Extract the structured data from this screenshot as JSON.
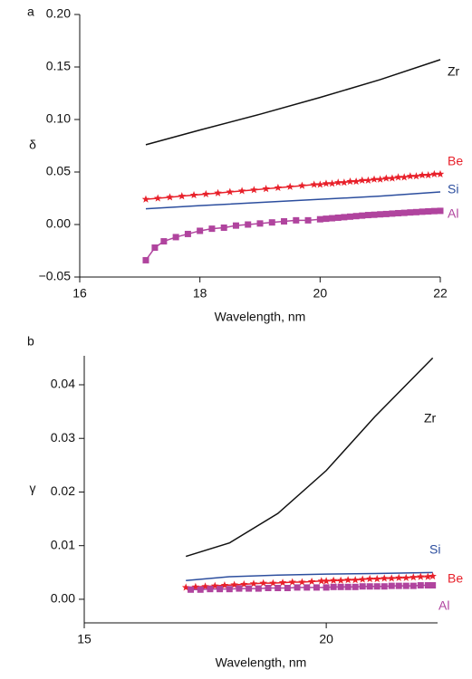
{
  "chart_data": [
    {
      "type": "line",
      "panel": "a",
      "ylabel": "δ",
      "xlabel": "Wavelength, nm",
      "xlim": [
        16,
        22
      ],
      "xticks": [
        16,
        18,
        20,
        22
      ],
      "ylim": [
        -0.05,
        0.2
      ],
      "yticks": [
        {
          "value": -0.05,
          "label": "−0.05"
        },
        {
          "value": 0,
          "label": "0.00"
        },
        {
          "value": 0.05,
          "label": "0.05"
        },
        {
          "value": 0.1,
          "label": "0.10"
        },
        {
          "value": 0.15,
          "label": "0.15"
        },
        {
          "value": 0.2,
          "label": "0.20"
        }
      ],
      "series": [
        {
          "name": "Zr",
          "color": "#111111",
          "marker": null,
          "x": [
            17.1,
            18,
            19,
            20,
            21,
            22
          ],
          "values": [
            0.076,
            0.09,
            0.105,
            0.121,
            0.138,
            0.157
          ]
        },
        {
          "name": "Be",
          "color": "#e8202a",
          "marker": "star",
          "x": [
            17.1,
            17.3,
            17.5,
            17.7,
            17.9,
            18.1,
            18.3,
            18.5,
            18.7,
            18.9,
            19.1,
            19.3,
            19.5,
            19.7,
            19.9,
            20,
            20.1,
            20.2,
            20.3,
            20.4,
            20.5,
            20.6,
            20.7,
            20.8,
            20.9,
            21,
            21.1,
            21.2,
            21.3,
            21.4,
            21.5,
            21.6,
            21.7,
            21.8,
            21.9,
            22
          ],
          "values": [
            0.024,
            0.025,
            0.026,
            0.027,
            0.028,
            0.029,
            0.03,
            0.031,
            0.032,
            0.033,
            0.034,
            0.035,
            0.036,
            0.037,
            0.038,
            0.038,
            0.039,
            0.039,
            0.04,
            0.04,
            0.041,
            0.041,
            0.042,
            0.042,
            0.043,
            0.043,
            0.044,
            0.044,
            0.045,
            0.045,
            0.046,
            0.046,
            0.047,
            0.047,
            0.048,
            0.048
          ]
        },
        {
          "name": "Si",
          "color": "#2c4e9e",
          "marker": null,
          "x": [
            17.1,
            18,
            19,
            20,
            21,
            22
          ],
          "values": [
            0.015,
            0.018,
            0.021,
            0.024,
            0.027,
            0.031
          ]
        },
        {
          "name": "Al",
          "color": "#b0449e",
          "marker": "square",
          "x": [
            17.1,
            17.25,
            17.4,
            17.6,
            17.8,
            18,
            18.2,
            18.4,
            18.6,
            18.8,
            19,
            19.2,
            19.4,
            19.6,
            19.8,
            20,
            20.1,
            20.2,
            20.3,
            20.4,
            20.5,
            20.6,
            20.7,
            20.8,
            20.9,
            21,
            21.1,
            21.2,
            21.3,
            21.4,
            21.5,
            21.6,
            21.7,
            21.8,
            21.9,
            22
          ],
          "values": [
            -0.034,
            -0.022,
            -0.016,
            -0.012,
            -0.009,
            -0.006,
            -0.004,
            -0.003,
            -0.001,
            0,
            0.001,
            0.002,
            0.003,
            0.004,
            0.004,
            0.005,
            0.0055,
            0.006,
            0.0065,
            0.007,
            0.0075,
            0.008,
            0.0085,
            0.009,
            0.0093,
            0.0097,
            0.01,
            0.0104,
            0.0108,
            0.0111,
            0.0115,
            0.0118,
            0.0122,
            0.0125,
            0.0128,
            0.013
          ]
        }
      ]
    },
    {
      "type": "line",
      "panel": "b",
      "ylabel": "γ",
      "xlabel": "Wavelength, nm",
      "xlim": [
        15,
        22.3
      ],
      "xticks": [
        15,
        20
      ],
      "ylim": [
        -0.0044,
        0.0454
      ],
      "yticks": [
        {
          "value": 0,
          "label": "0.00"
        },
        {
          "value": 0.01,
          "label": "0.01"
        },
        {
          "value": 0.02,
          "label": "0.02"
        },
        {
          "value": 0.03,
          "label": "0.03"
        },
        {
          "value": 0.04,
          "label": "0.04"
        }
      ],
      "series": [
        {
          "name": "Zr",
          "color": "#111111",
          "marker": null,
          "x": [
            17.1,
            18,
            19,
            20,
            21,
            22.2
          ],
          "values": [
            0.008,
            0.0105,
            0.016,
            0.024,
            0.034,
            0.045
          ]
        },
        {
          "name": "Si",
          "color": "#2c4e9e",
          "marker": null,
          "x": [
            17.1,
            18,
            19,
            20,
            21,
            22.2
          ],
          "values": [
            0.0035,
            0.0042,
            0.0045,
            0.0047,
            0.0048,
            0.005
          ]
        },
        {
          "name": "Be",
          "color": "#e8202a",
          "marker": "star",
          "x": [
            17.1,
            17.3,
            17.5,
            17.7,
            17.9,
            18.1,
            18.3,
            18.5,
            18.7,
            18.9,
            19.1,
            19.3,
            19.5,
            19.7,
            19.9,
            20,
            20.15,
            20.3,
            20.45,
            20.6,
            20.75,
            20.9,
            21.05,
            21.2,
            21.35,
            21.5,
            21.65,
            21.8,
            21.95,
            22.1,
            22.2
          ],
          "values": [
            0.0022,
            0.0023,
            0.0024,
            0.0025,
            0.0026,
            0.0027,
            0.0028,
            0.0029,
            0.003,
            0.003,
            0.0031,
            0.0032,
            0.0032,
            0.0033,
            0.0034,
            0.0034,
            0.0035,
            0.0035,
            0.0036,
            0.0036,
            0.0037,
            0.0038,
            0.0038,
            0.0039,
            0.0039,
            0.004,
            0.004,
            0.0041,
            0.0042,
            0.0042,
            0.0043
          ]
        },
        {
          "name": "Al",
          "color": "#b0449e",
          "marker": "square",
          "x": [
            17.2,
            17.4,
            17.6,
            17.8,
            18,
            18.2,
            18.4,
            18.6,
            18.8,
            19,
            19.2,
            19.4,
            19.6,
            19.8,
            20,
            20.15,
            20.3,
            20.45,
            20.6,
            20.75,
            20.9,
            21.05,
            21.2,
            21.35,
            21.5,
            21.65,
            21.8,
            21.95,
            22.1,
            22.2
          ],
          "values": [
            0.0018,
            0.0018,
            0.0019,
            0.0019,
            0.0019,
            0.002,
            0.002,
            0.002,
            0.0021,
            0.0021,
            0.0021,
            0.0022,
            0.0022,
            0.0022,
            0.0022,
            0.0023,
            0.0023,
            0.0023,
            0.0023,
            0.0024,
            0.0024,
            0.0024,
            0.0024,
            0.0025,
            0.0025,
            0.0025,
            0.0025,
            0.0026,
            0.0026,
            0.0026
          ]
        }
      ]
    }
  ]
}
